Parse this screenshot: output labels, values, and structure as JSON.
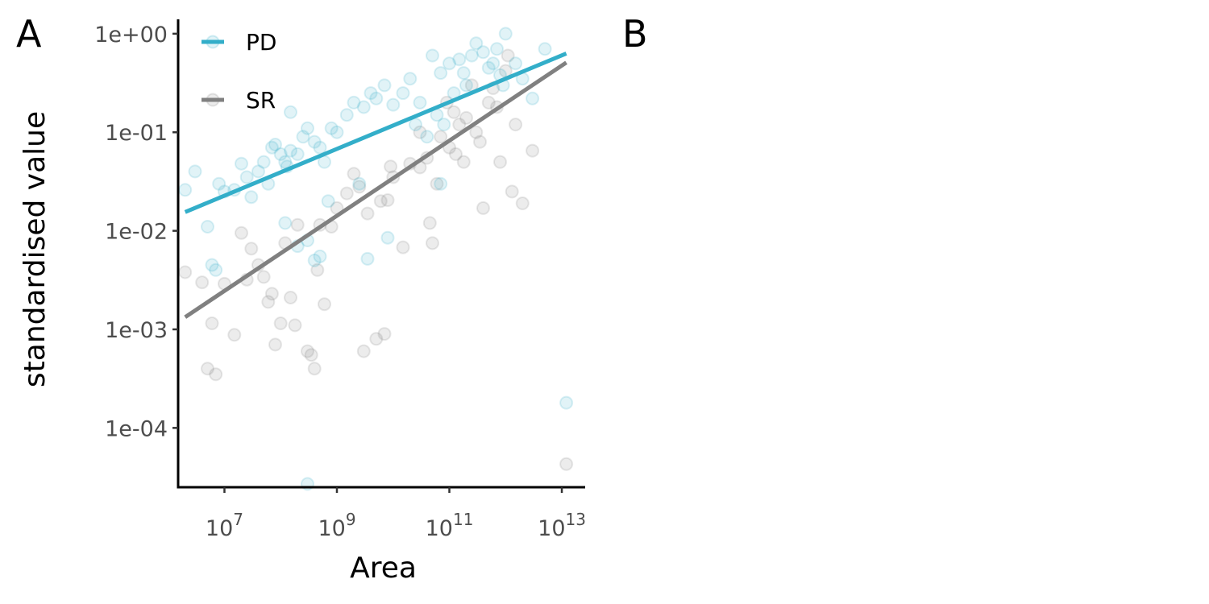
{
  "panels": {
    "a_label": "A",
    "b_label": "B"
  },
  "chart_data": {
    "type": "scatter",
    "title": "",
    "xlabel": "Area",
    "ylabel": "standardised value",
    "x_scale": "log10",
    "y_scale": "log10",
    "xlim": [
      1500000,
      26000000000000
    ],
    "ylim": [
      2.5e-05,
      1.4
    ],
    "x_ticks": [
      {
        "value": 10000000,
        "base": "10",
        "exp": "7"
      },
      {
        "value": 1000000000,
        "base": "10",
        "exp": "9"
      },
      {
        "value": 100000000000,
        "base": "10",
        "exp": "11"
      },
      {
        "value": 10000000000000,
        "base": "10",
        "exp": "13"
      }
    ],
    "y_ticks": [
      {
        "value": 1,
        "label": "1e+00"
      },
      {
        "value": 0.1,
        "label": "1e-01"
      },
      {
        "value": 0.01,
        "label": "1e-02"
      },
      {
        "value": 0.001,
        "label": "1e-03"
      },
      {
        "value": 0.0001,
        "label": "1e-04"
      }
    ],
    "grid": false,
    "legend_position": "top-left",
    "point_alpha": 0.15,
    "series": [
      {
        "name": "PD",
        "color": "#33aec9",
        "trend": [
          [
            2000000,
            0.0155
          ],
          [
            12000000000000,
            0.63
          ]
        ],
        "points": [
          [
            2000000,
            0.026
          ],
          [
            3000000,
            0.04
          ],
          [
            5000000,
            0.011
          ],
          [
            6000000,
            0.0045
          ],
          [
            7000000,
            0.004
          ],
          [
            8000000,
            0.03
          ],
          [
            10000000,
            0.025
          ],
          [
            15000000,
            0.026
          ],
          [
            20000000,
            0.048
          ],
          [
            25000000,
            0.035
          ],
          [
            30000000,
            0.022
          ],
          [
            40000000,
            0.04
          ],
          [
            50000000,
            0.05
          ],
          [
            60000000,
            0.03
          ],
          [
            70000000,
            0.07
          ],
          [
            80000000,
            0.075
          ],
          [
            100000000,
            0.06
          ],
          [
            120000000,
            0.05
          ],
          [
            150000000,
            0.065
          ],
          [
            200000000,
            0.06
          ],
          [
            250000000,
            0.09
          ],
          [
            300000000,
            0.11
          ],
          [
            400000000,
            0.08
          ],
          [
            500000000,
            0.07
          ],
          [
            600000000,
            0.05
          ],
          [
            800000000,
            0.11
          ],
          [
            1000000000,
            0.1
          ],
          [
            1500000000,
            0.15
          ],
          [
            2000000000,
            0.2
          ],
          [
            3000000000,
            0.18
          ],
          [
            4000000000,
            0.25
          ],
          [
            5000000000,
            0.22
          ],
          [
            7000000000,
            0.3
          ],
          [
            10000000000,
            0.19
          ],
          [
            15000000000,
            0.25
          ],
          [
            20000000000,
            0.35
          ],
          [
            30000000000,
            0.2
          ],
          [
            50000000000,
            0.6
          ],
          [
            70000000000,
            0.4
          ],
          [
            100000000000,
            0.5
          ],
          [
            150000000000,
            0.55
          ],
          [
            200000000000,
            0.3
          ],
          [
            300000000000,
            0.8
          ],
          [
            400000000000,
            0.65
          ],
          [
            500000000000,
            0.45
          ],
          [
            700000000000,
            0.7
          ],
          [
            1000000000000,
            1.0
          ],
          [
            1500000000000,
            0.5
          ],
          [
            2000000000000,
            0.35
          ],
          [
            3000000000000,
            0.22
          ],
          [
            5000000000000,
            0.7
          ],
          [
            120000000,
            0.012
          ],
          [
            200000000,
            0.007
          ],
          [
            300000000,
            0.008
          ],
          [
            500000000,
            0.0055
          ],
          [
            3500000000,
            0.0052
          ],
          [
            8000000000,
            0.0085
          ],
          [
            70000000000,
            0.03
          ],
          [
            150000000,
            0.16
          ],
          [
            130000000,
            0.045
          ],
          [
            25000000000,
            0.12
          ],
          [
            40000000000,
            0.09
          ],
          [
            60000000000,
            0.15
          ],
          [
            80000000000,
            0.12
          ],
          [
            120000000000,
            0.25
          ],
          [
            180000000000,
            0.4
          ],
          [
            250000000000,
            0.6
          ],
          [
            600000000000,
            0.5
          ],
          [
            800000000000,
            0.38
          ],
          [
            900000000000,
            0.3
          ],
          [
            12000000000000,
            0.00018
          ],
          [
            300000000,
            2.7e-05
          ],
          [
            400000000,
            0.005
          ],
          [
            700000000,
            0.02
          ],
          [
            2500000000,
            0.03
          ]
        ]
      },
      {
        "name": "SR",
        "color": "#808080",
        "trend": [
          [
            2000000,
            0.00133
          ],
          [
            12000000000000,
            0.51
          ]
        ],
        "points": [
          [
            2000000,
            0.0038
          ],
          [
            4000000,
            0.003
          ],
          [
            5000000,
            0.0004
          ],
          [
            6000000,
            0.00115
          ],
          [
            7000000,
            0.00035
          ],
          [
            10000000,
            0.0029
          ],
          [
            15000000,
            0.00088
          ],
          [
            20000000,
            0.0095
          ],
          [
            25000000,
            0.0032
          ],
          [
            30000000,
            0.0066
          ],
          [
            40000000,
            0.0045
          ],
          [
            50000000,
            0.0034
          ],
          [
            60000000,
            0.0019
          ],
          [
            70000000,
            0.0023
          ],
          [
            80000000,
            0.0007
          ],
          [
            100000000,
            0.00115
          ],
          [
            120000000,
            0.0075
          ],
          [
            150000000,
            0.0021
          ],
          [
            180000000,
            0.0011
          ],
          [
            200000000,
            0.0115
          ],
          [
            300000000,
            0.0006
          ],
          [
            350000000,
            0.00055
          ],
          [
            400000000,
            0.0004
          ],
          [
            450000000,
            0.004
          ],
          [
            500000000,
            0.0115
          ],
          [
            600000000,
            0.0018
          ],
          [
            800000000,
            0.011
          ],
          [
            1000000000,
            0.017
          ],
          [
            1500000000,
            0.024
          ],
          [
            2000000000,
            0.038
          ],
          [
            3000000000,
            0.0006
          ],
          [
            3500000000,
            0.015
          ],
          [
            5000000000,
            0.0008
          ],
          [
            7000000000,
            0.0009
          ],
          [
            8000000000,
            0.0205
          ],
          [
            10000000000,
            0.035
          ],
          [
            15000000000,
            0.0068
          ],
          [
            20000000000,
            0.048
          ],
          [
            30000000000,
            0.044
          ],
          [
            40000000000,
            0.055
          ],
          [
            50000000000,
            0.0075
          ],
          [
            70000000000,
            0.09
          ],
          [
            100000000000,
            0.07
          ],
          [
            120000000000,
            0.16
          ],
          [
            150000000000,
            0.12
          ],
          [
            200000000000,
            0.14
          ],
          [
            300000000000,
            0.1
          ],
          [
            400000000000,
            0.017
          ],
          [
            500000000000,
            0.2
          ],
          [
            700000000000,
            0.18
          ],
          [
            1000000000000,
            0.42
          ],
          [
            1300000000000,
            0.025
          ],
          [
            1500000000000,
            0.12
          ],
          [
            2000000000000,
            0.019
          ],
          [
            3000000000000,
            0.065
          ],
          [
            12000000000000,
            4.3e-05
          ],
          [
            9000000000,
            0.045
          ],
          [
            30000000000,
            0.1
          ],
          [
            60000000000,
            0.03
          ],
          [
            90000000000,
            0.2
          ],
          [
            250000000000,
            0.3
          ],
          [
            600000000000,
            0.28
          ],
          [
            800000000000,
            0.05
          ],
          [
            1100000000000,
            0.6
          ],
          [
            6000000000,
            0.02
          ],
          [
            2500000000,
            0.028
          ],
          [
            45000000000,
            0.012
          ],
          [
            130000000000,
            0.06
          ],
          [
            180000000000,
            0.05
          ],
          [
            350000000000,
            0.08
          ]
        ]
      }
    ]
  }
}
